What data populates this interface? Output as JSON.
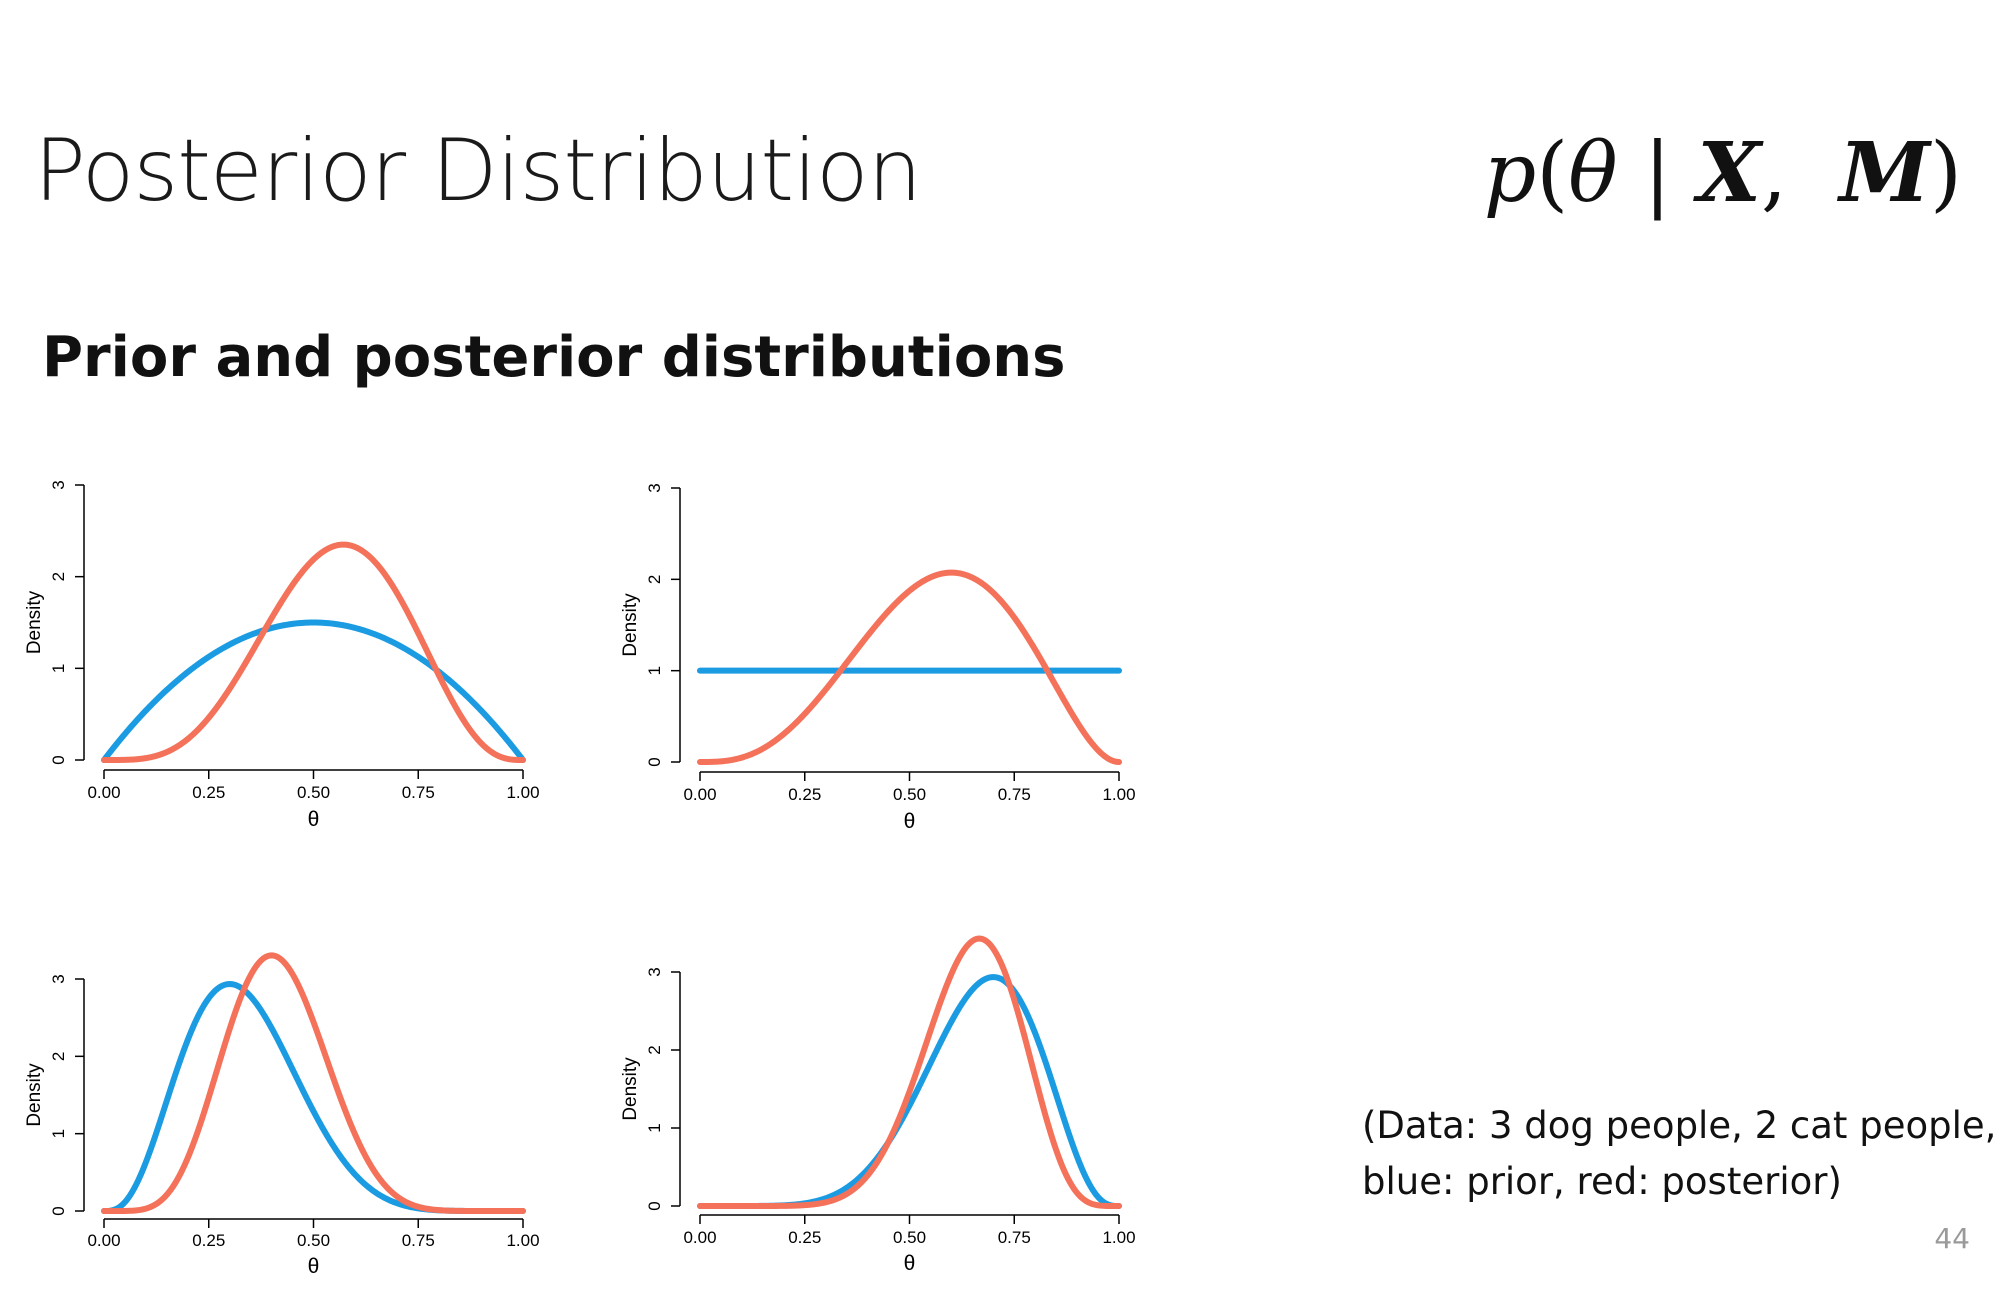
{
  "slide": {
    "title": "Posterior Distribution",
    "formula": {
      "p": "p",
      "open": "(",
      "theta": "θ",
      "bar": "|",
      "X": "X",
      "comma": ",",
      "M": "M",
      "close": ")"
    },
    "subtitle": "Prior and posterior distributions",
    "note_line1": "(Data: 3 dog people, 2 cat people,",
    "note_line2": "blue: prior, red: posterior)",
    "page_number": "44"
  },
  "colors": {
    "prior": "#1a9be2",
    "posterior": "#f4715a",
    "axis": "#000000"
  },
  "chart_data": [
    {
      "type": "line",
      "xlabel": "θ",
      "ylabel": "Density",
      "xlim": [
        0,
        1
      ],
      "ylim": [
        0,
        3
      ],
      "xticks": [
        "0.00",
        "0.25",
        "0.50",
        "0.75",
        "1.00"
      ],
      "yticks": [
        "0",
        "1",
        "2",
        "3"
      ],
      "grid": false,
      "series": [
        {
          "role": "prior",
          "dist": "beta",
          "a": 2,
          "b": 2,
          "peak_theta": 0.5,
          "peak_density": 1.5
        },
        {
          "role": "posterior",
          "dist": "beta",
          "a": 5,
          "b": 4,
          "peak_theta": 0.57,
          "peak_density": 2.35
        }
      ]
    },
    {
      "type": "line",
      "xlabel": "θ",
      "ylabel": "Density",
      "xlim": [
        0,
        1
      ],
      "ylim": [
        0,
        3
      ],
      "xticks": [
        "0.00",
        "0.25",
        "0.50",
        "0.75",
        "1.00"
      ],
      "yticks": [
        "0",
        "1",
        "2",
        "3"
      ],
      "grid": false,
      "series": [
        {
          "role": "prior",
          "dist": "beta",
          "a": 1,
          "b": 1,
          "peak_theta": 0.5,
          "peak_density": 1.0
        },
        {
          "role": "posterior",
          "dist": "beta",
          "a": 4,
          "b": 3,
          "peak_theta": 0.6,
          "peak_density": 2.07
        }
      ]
    },
    {
      "type": "line",
      "xlabel": "θ",
      "ylabel": "Density",
      "xlim": [
        0,
        1
      ],
      "ylim": [
        0,
        3
      ],
      "xticks": [
        "0.00",
        "0.25",
        "0.50",
        "0.75",
        "1.00"
      ],
      "yticks": [
        "0",
        "1",
        "2",
        "3"
      ],
      "grid": false,
      "series": [
        {
          "role": "prior",
          "dist": "beta",
          "a": 4,
          "b": 8,
          "peak_theta": 0.3,
          "peak_density": 2.95
        },
        {
          "role": "posterior",
          "dist": "beta",
          "a": 7,
          "b": 10,
          "peak_theta": 0.4,
          "peak_density": 3.3
        }
      ]
    },
    {
      "type": "line",
      "xlabel": "θ",
      "ylabel": "Density",
      "xlim": [
        0,
        1
      ],
      "ylim": [
        0,
        3
      ],
      "xticks": [
        "0.00",
        "0.25",
        "0.50",
        "0.75",
        "1.00"
      ],
      "yticks": [
        "0",
        "1",
        "2",
        "3"
      ],
      "grid": false,
      "series": [
        {
          "role": "prior",
          "dist": "beta",
          "a": 8,
          "b": 4,
          "peak_theta": 0.7,
          "peak_density": 2.95
        },
        {
          "role": "posterior",
          "dist": "beta",
          "a": 11,
          "b": 6,
          "peak_theta": 0.67,
          "peak_density": 3.45
        }
      ]
    }
  ]
}
